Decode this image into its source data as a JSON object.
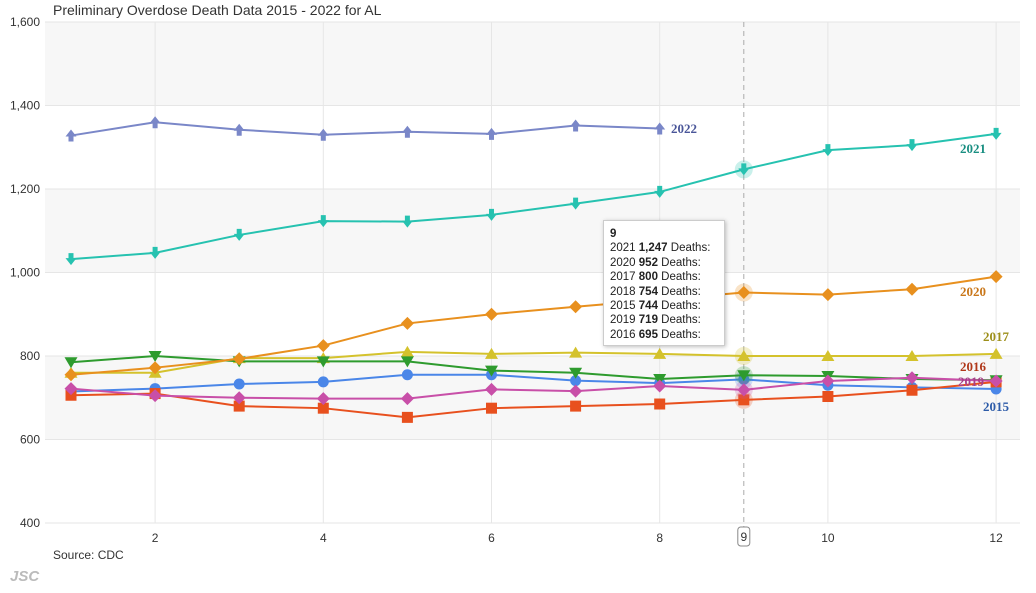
{
  "title": "Preliminary Overdose Death Data 2015 - 2022 for AL",
  "source": "Source: CDC",
  "logo": "JSC",
  "tooltip": {
    "header": "9",
    "rows": [
      {
        "year": "2021",
        "value": "1,247",
        "suffix": "Deaths:"
      },
      {
        "year": "2020",
        "value": "952",
        "suffix": "Deaths:"
      },
      {
        "year": "2017",
        "value": "800",
        "suffix": "Deaths:"
      },
      {
        "year": "2018",
        "value": "754",
        "suffix": "Deaths:"
      },
      {
        "year": "2015",
        "value": "744",
        "suffix": "Deaths:"
      },
      {
        "year": "2019",
        "value": "719",
        "suffix": "Deaths:"
      },
      {
        "year": "2016",
        "value": "695",
        "suffix": "Deaths:"
      }
    ]
  },
  "chart_data": {
    "type": "line",
    "title": "Preliminary Overdose Death Data 2015 - 2022 for AL",
    "xlim": [
      1,
      12
    ],
    "ylim": [
      400,
      1600
    ],
    "x_ticks": [
      "2",
      "4",
      "6",
      "8",
      "9",
      "10",
      "12"
    ],
    "y_ticks": [
      "400",
      "600",
      "800",
      "1,000",
      "1,200",
      "1,400",
      "1,600"
    ],
    "crosshair_x": 9,
    "series": [
      {
        "name": "2015",
        "color": "#4a86e8",
        "marker": "circle",
        "x": [
          1,
          2,
          3,
          4,
          5,
          6,
          7,
          8,
          9,
          10,
          11,
          12
        ],
        "values": [
          715,
          722,
          733,
          738,
          755,
          755,
          741,
          735,
          744,
          730,
          725,
          721
        ]
      },
      {
        "name": "2016",
        "color": "#e8501e",
        "marker": "square",
        "x": [
          1,
          2,
          3,
          4,
          5,
          6,
          7,
          8,
          9,
          10,
          11,
          12
        ],
        "values": [
          706,
          710,
          680,
          675,
          653,
          675,
          680,
          685,
          695,
          703,
          718,
          738
        ]
      },
      {
        "name": "2017",
        "color": "#d4c22c",
        "marker": "triangle-up",
        "x": [
          1,
          2,
          3,
          4,
          5,
          6,
          7,
          8,
          9,
          10,
          11,
          12
        ],
        "values": [
          760,
          760,
          795,
          795,
          810,
          805,
          808,
          805,
          800,
          800,
          800,
          805
        ]
      },
      {
        "name": "2018",
        "color": "#2e9b2e",
        "marker": "triangle-down",
        "x": [
          1,
          2,
          3,
          4,
          5,
          6,
          7,
          8,
          9,
          10,
          11,
          12
        ],
        "values": [
          785,
          800,
          787,
          787,
          787,
          765,
          760,
          745,
          754,
          752,
          745,
          742
        ]
      },
      {
        "name": "2019",
        "color": "#c84fa8",
        "marker": "diamond",
        "x": [
          1,
          2,
          3,
          4,
          5,
          6,
          7,
          8,
          9,
          10,
          11,
          12
        ],
        "values": [
          722,
          705,
          700,
          698,
          698,
          720,
          716,
          728,
          719,
          740,
          748,
          740
        ]
      },
      {
        "name": "2020",
        "color": "#e8901e",
        "marker": "diamond",
        "x": [
          1,
          2,
          3,
          4,
          5,
          6,
          7,
          8,
          9,
          10,
          11,
          12
        ],
        "values": [
          755,
          772,
          793,
          825,
          878,
          900,
          918,
          935,
          952,
          947,
          960,
          990
        ]
      },
      {
        "name": "2021",
        "color": "#26c2b0",
        "marker": "arrow-down",
        "x": [
          1,
          2,
          3,
          4,
          5,
          6,
          7,
          8,
          9,
          10,
          11,
          12
        ],
        "values": [
          1032,
          1047,
          1090,
          1123,
          1122,
          1138,
          1165,
          1193,
          1247,
          1293,
          1305,
          1332
        ]
      },
      {
        "name": "2022",
        "color": "#7a87c8",
        "marker": "arrow-up",
        "x": [
          1,
          2,
          3,
          4,
          5,
          6,
          7,
          8
        ],
        "values": [
          1328,
          1360,
          1342,
          1330,
          1337,
          1332,
          1352,
          1345
        ]
      }
    ]
  }
}
